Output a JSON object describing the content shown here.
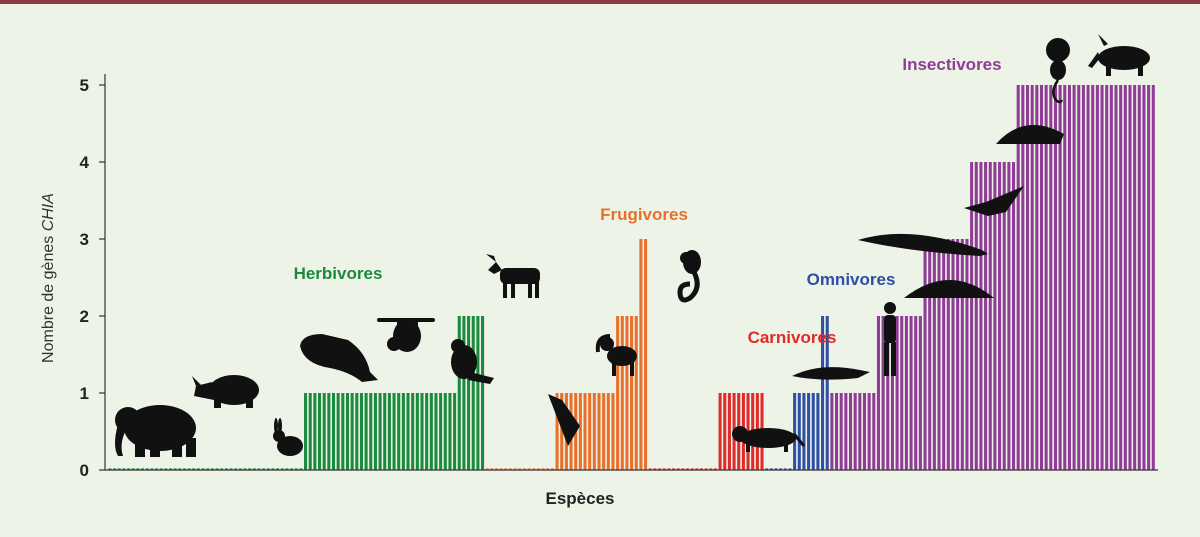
{
  "chart_data": {
    "type": "bar",
    "ylabel": "Nombre de gènes",
    "ylabel_italic": "CHIA",
    "xlabel": "Espèces",
    "ylim": [
      0,
      5
    ],
    "yticks": [
      "0",
      "1",
      "2",
      "3",
      "4",
      "5"
    ],
    "grid": false,
    "groups": [
      {
        "name": "Herbivores",
        "color": "#1a8a3c",
        "values": [
          0,
          0,
          0,
          0,
          0,
          0,
          0,
          0,
          0,
          0,
          0,
          0,
          0,
          0,
          0,
          0,
          0,
          0,
          0,
          0,
          0,
          0,
          0,
          0,
          0,
          0,
          0,
          0,
          0,
          0,
          0,
          0,
          0,
          0,
          0,
          0,
          0,
          0,
          0,
          0,
          0,
          0,
          1,
          1,
          1,
          1,
          1,
          1,
          1,
          1,
          1,
          1,
          1,
          1,
          1,
          1,
          1,
          1,
          1,
          1,
          1,
          1,
          1,
          1,
          1,
          1,
          1,
          1,
          1,
          1,
          1,
          1,
          1,
          1,
          1,
          2,
          2,
          2,
          2,
          2,
          2
        ]
      },
      {
        "name": "Frugivores",
        "color": "#e8702a",
        "values": [
          0,
          0,
          0,
          0,
          0,
          0,
          0,
          0,
          0,
          0,
          0,
          0,
          0,
          0,
          0,
          1,
          1,
          1,
          1,
          1,
          1,
          1,
          1,
          1,
          1,
          1,
          1,
          1,
          2,
          2,
          2,
          2,
          2,
          3,
          3
        ]
      },
      {
        "name": "Carnivores",
        "color": "#e02b2b",
        "values": [
          0,
          0,
          0,
          0,
          0,
          0,
          0,
          0,
          0,
          0,
          0,
          0,
          0,
          0,
          0,
          1,
          1,
          1,
          1,
          1,
          1,
          1,
          1,
          1,
          1
        ]
      },
      {
        "name": "Omnivores",
        "color": "#2e4fa3",
        "values": [
          0,
          0,
          0,
          0,
          0,
          0,
          1,
          1,
          1,
          1,
          1,
          1,
          2,
          2
        ]
      },
      {
        "name": "Insectivores",
        "color": "#8e3c96",
        "values": [
          1,
          1,
          1,
          1,
          1,
          1,
          1,
          1,
          1,
          1,
          2,
          2,
          2,
          2,
          2,
          2,
          2,
          2,
          2,
          2,
          3,
          3,
          3,
          3,
          3,
          3,
          3,
          3,
          3,
          3,
          4,
          4,
          4,
          4,
          4,
          4,
          4,
          4,
          4,
          4,
          5,
          5,
          5,
          5,
          5,
          5,
          5,
          5,
          5,
          5,
          5,
          5,
          5,
          5,
          5,
          5,
          5,
          5,
          5,
          5,
          5,
          5,
          5,
          5,
          5,
          5,
          5,
          5,
          5,
          5
        ]
      }
    ]
  }
}
